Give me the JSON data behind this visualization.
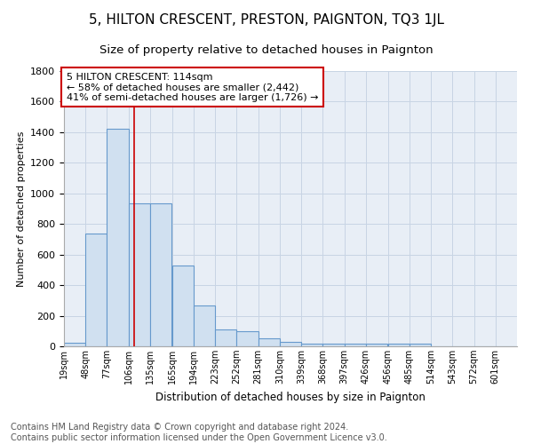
{
  "title": "5, HILTON CRESCENT, PRESTON, PAIGNTON, TQ3 1JL",
  "subtitle": "Size of property relative to detached houses in Paignton",
  "xlabel": "Distribution of detached houses by size in Paignton",
  "ylabel": "Number of detached properties",
  "footer_line1": "Contains HM Land Registry data © Crown copyright and database right 2024.",
  "footer_line2": "Contains public sector information licensed under the Open Government Licence v3.0.",
  "bin_labels": [
    "19sqm",
    "48sqm",
    "77sqm",
    "106sqm",
    "135sqm",
    "165sqm",
    "194sqm",
    "223sqm",
    "252sqm",
    "281sqm",
    "310sqm",
    "339sqm",
    "368sqm",
    "397sqm",
    "426sqm",
    "456sqm",
    "485sqm",
    "514sqm",
    "543sqm",
    "572sqm",
    "601sqm"
  ],
  "bar_heights": [
    25,
    740,
    1420,
    935,
    935,
    530,
    270,
    110,
    100,
    50,
    30,
    20,
    15,
    15,
    15,
    15,
    15,
    0,
    0,
    0,
    0
  ],
  "bar_color": "#d0e0f0",
  "bar_edge_color": "#6699cc",
  "bar_edge_width": 0.8,
  "ylim": [
    0,
    1800
  ],
  "yticks": [
    0,
    200,
    400,
    600,
    800,
    1000,
    1200,
    1400,
    1600,
    1800
  ],
  "grid_color": "#c8d4e4",
  "bg_color": "#e8eef6",
  "red_line_x": 114,
  "bin_width": 29,
  "annotation_text": "5 HILTON CRESCENT: 114sqm\n← 58% of detached houses are smaller (2,442)\n41% of semi-detached houses are larger (1,726) →",
  "annotation_box_color": "#ffffff",
  "annotation_box_edge": "#cc0000",
  "title_fontsize": 11,
  "subtitle_fontsize": 9.5,
  "annotation_fontsize": 8,
  "footer_fontsize": 7,
  "ylabel_fontsize": 8,
  "xlabel_fontsize": 8.5
}
